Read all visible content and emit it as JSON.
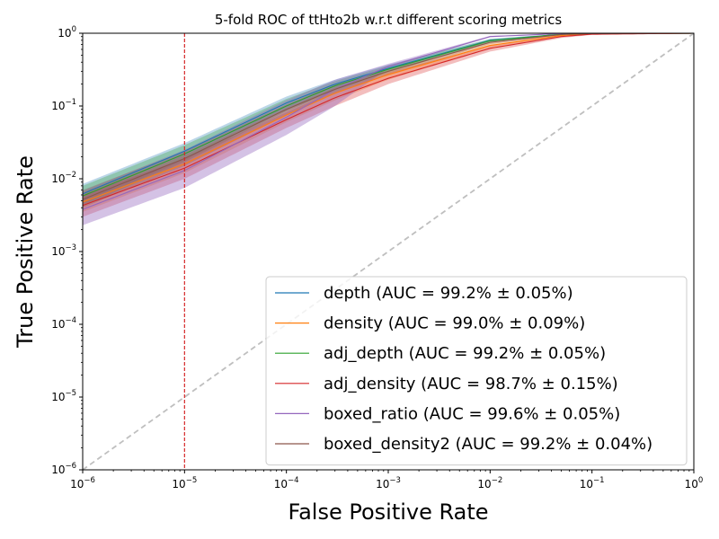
{
  "chart_data": {
    "type": "line",
    "title": "5-fold ROC of ttHto2b w.r.t different scoring metrics",
    "xlabel": "False Positive Rate",
    "ylabel": "True Positive Rate",
    "xscale": "log",
    "yscale": "log",
    "xlim": [
      1e-06,
      1
    ],
    "ylim": [
      1e-06,
      1
    ],
    "x_ticks": [
      {
        "base": "10",
        "exp": "−6",
        "value": 1e-06
      },
      {
        "base": "10",
        "exp": "−5",
        "value": 1e-05
      },
      {
        "base": "10",
        "exp": "−4",
        "value": 0.0001
      },
      {
        "base": "10",
        "exp": "−3",
        "value": 0.001
      },
      {
        "base": "10",
        "exp": "−2",
        "value": 0.01
      },
      {
        "base": "10",
        "exp": "−1",
        "value": 0.1
      },
      {
        "base": "10",
        "exp": "0",
        "value": 1
      }
    ],
    "y_ticks": [
      {
        "base": "10",
        "exp": "−6",
        "value": 1e-06
      },
      {
        "base": "10",
        "exp": "−5",
        "value": 1e-05
      },
      {
        "base": "10",
        "exp": "−4",
        "value": 0.0001
      },
      {
        "base": "10",
        "exp": "−3",
        "value": 0.001
      },
      {
        "base": "10",
        "exp": "−2",
        "value": 0.01
      },
      {
        "base": "10",
        "exp": "−1",
        "value": 0.1
      },
      {
        "base": "10",
        "exp": "0",
        "value": 1
      }
    ],
    "grid": false,
    "legend_position": "lower-right",
    "reference_lines": [
      {
        "kind": "diagonal",
        "style": "dashed",
        "color": "#bfbfbf"
      },
      {
        "kind": "vertical",
        "x": 1e-05,
        "style": "dashed",
        "color": "#d62728"
      }
    ],
    "series": [
      {
        "name": "depth (AUC = 99.2% ± 0.05%)",
        "color": "#1f77b4",
        "fpr": [
          1e-06,
          1e-05,
          0.0001,
          0.0003,
          0.001,
          0.01,
          0.05,
          0.1,
          1
        ],
        "tpr": [
          0.0062,
          0.024,
          0.11,
          0.2,
          0.33,
          0.8,
          0.97,
          0.99,
          1
        ],
        "tpr_low": [
          0.0045,
          0.018,
          0.09,
          0.17,
          0.3,
          0.76,
          0.96,
          0.985,
          1
        ],
        "tpr_high": [
          0.0085,
          0.031,
          0.135,
          0.23,
          0.37,
          0.84,
          0.98,
          0.995,
          1
        ]
      },
      {
        "name": "density (AUC = 99.0% ± 0.09%)",
        "color": "#ff7f0e",
        "fpr": [
          1e-06,
          1e-05,
          0.0001,
          0.0003,
          0.001,
          0.01,
          0.05,
          0.1,
          1
        ],
        "tpr": [
          0.0048,
          0.016,
          0.075,
          0.15,
          0.27,
          0.68,
          0.93,
          0.98,
          1
        ],
        "tpr_low": [
          0.0035,
          0.012,
          0.06,
          0.12,
          0.23,
          0.62,
          0.9,
          0.97,
          1
        ],
        "tpr_high": [
          0.0065,
          0.021,
          0.092,
          0.18,
          0.31,
          0.74,
          0.95,
          0.99,
          1
        ]
      },
      {
        "name": "adj_depth (AUC = 99.2% ± 0.05%)",
        "color": "#2ca02c",
        "fpr": [
          1e-06,
          1e-05,
          0.0001,
          0.0003,
          0.001,
          0.01,
          0.05,
          0.1,
          1
        ],
        "tpr": [
          0.0058,
          0.022,
          0.1,
          0.19,
          0.32,
          0.79,
          0.97,
          0.99,
          1
        ],
        "tpr_low": [
          0.0042,
          0.017,
          0.085,
          0.16,
          0.29,
          0.75,
          0.96,
          0.985,
          1
        ],
        "tpr_high": [
          0.008,
          0.029,
          0.125,
          0.22,
          0.36,
          0.83,
          0.98,
          0.995,
          1
        ]
      },
      {
        "name": "adj_density (AUC = 98.7% ± 0.15%)",
        "color": "#d62728",
        "fpr": [
          1e-06,
          1e-05,
          0.0001,
          0.0003,
          0.001,
          0.01,
          0.05,
          0.1,
          1
        ],
        "tpr": [
          0.0043,
          0.014,
          0.065,
          0.13,
          0.24,
          0.62,
          0.9,
          0.97,
          1
        ],
        "tpr_low": [
          0.003,
          0.01,
          0.05,
          0.1,
          0.2,
          0.56,
          0.86,
          0.95,
          1
        ],
        "tpr_high": [
          0.006,
          0.019,
          0.082,
          0.16,
          0.29,
          0.68,
          0.93,
          0.985,
          1
        ]
      },
      {
        "name": "boxed_ratio (AUC = 99.6% ± 0.05%)",
        "color": "#9467bd",
        "fpr": [
          1e-06,
          1e-05,
          0.0001,
          0.0003,
          0.001,
          0.01,
          0.05,
          0.1,
          1
        ],
        "tpr": [
          0.0038,
          0.013,
          0.07,
          0.17,
          0.35,
          0.9,
          0.99,
          1,
          1
        ],
        "tpr_low": [
          0.0023,
          0.0075,
          0.04,
          0.1,
          0.33,
          0.88,
          0.985,
          0.995,
          1
        ],
        "tpr_high": [
          0.0068,
          0.025,
          0.12,
          0.23,
          0.38,
          0.92,
          0.995,
          1,
          1
        ]
      },
      {
        "name": "boxed_density2 (AUC = 99.2% ± 0.04%)",
        "color": "#8c564b",
        "fpr": [
          1e-06,
          1e-05,
          0.0001,
          0.0003,
          0.001,
          0.01,
          0.05,
          0.1,
          1
        ],
        "tpr": [
          0.0052,
          0.019,
          0.09,
          0.17,
          0.3,
          0.75,
          0.96,
          0.99,
          1
        ],
        "tpr_low": [
          0.004,
          0.015,
          0.075,
          0.15,
          0.27,
          0.71,
          0.94,
          0.985,
          1
        ],
        "tpr_high": [
          0.007,
          0.024,
          0.105,
          0.2,
          0.33,
          0.79,
          0.97,
          0.995,
          1
        ]
      }
    ]
  }
}
